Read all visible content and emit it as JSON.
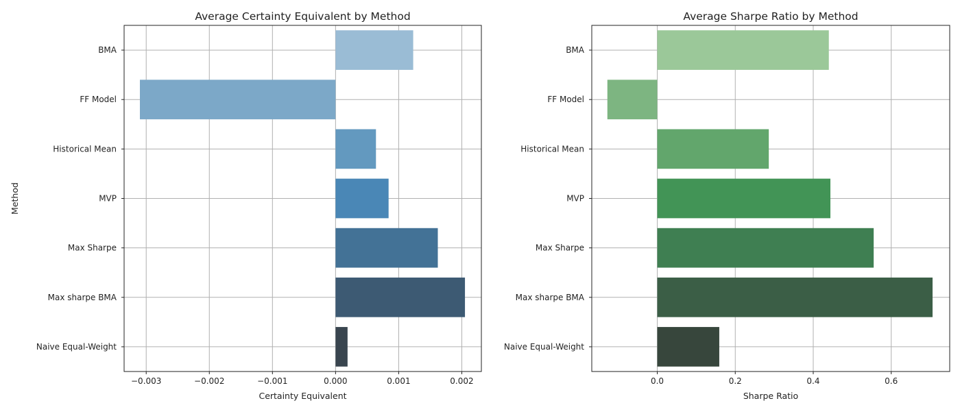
{
  "chart_data": [
    {
      "type": "bar",
      "orientation": "horizontal",
      "title": "Average Certainty Equivalent by Method",
      "xlabel": "Certainty Equivalent",
      "ylabel": "Method",
      "categories": [
        "BMA",
        "FF Model",
        "Historical Mean",
        "MVP",
        "Max Sharpe",
        "Max sharpe BMA",
        "Naive Equal-Weight"
      ],
      "values": [
        0.00123,
        -0.0031,
        0.00064,
        0.00084,
        0.00162,
        0.00205,
        0.00019
      ],
      "colors": [
        "#9abcd5",
        "#7ca8c8",
        "#6399bf",
        "#4a87b6",
        "#437296",
        "#3d5a73",
        "#39454f"
      ],
      "xlim": [
        -0.00335,
        0.00231
      ],
      "xticks": [
        -0.003,
        -0.002,
        -0.001,
        0.0,
        0.001,
        0.002
      ],
      "xtick_labels": [
        "−0.003",
        "−0.002",
        "−0.001",
        "0.000",
        "0.001",
        "0.002"
      ],
      "grid": true
    },
    {
      "type": "bar",
      "orientation": "horizontal",
      "title": "Average Sharpe Ratio by Method",
      "xlabel": "Sharpe Ratio",
      "ylabel": "",
      "categories": [
        "BMA",
        "FF Model",
        "Historical Mean",
        "MVP",
        "Max Sharpe",
        "Max sharpe BMA",
        "Naive Equal-Weight"
      ],
      "values": [
        0.44,
        -0.128,
        0.286,
        0.444,
        0.555,
        0.706,
        0.159
      ],
      "colors": [
        "#9bc899",
        "#7db581",
        "#62a66c",
        "#429456",
        "#3f7f52",
        "#3b5e46",
        "#37463c"
      ],
      "xlim": [
        -0.168,
        0.75
      ],
      "xticks": [
        0.0,
        0.2,
        0.4,
        0.6
      ],
      "xtick_labels": [
        "0.0",
        "0.2",
        "0.4",
        "0.6"
      ],
      "grid": true
    }
  ]
}
